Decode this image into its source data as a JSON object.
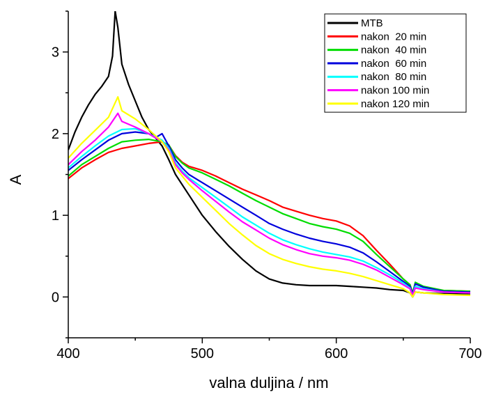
{
  "chart_data": {
    "type": "line",
    "title": "",
    "xlabel": "valna duljina / nm",
    "ylabel": "A",
    "xlim": [
      400,
      700
    ],
    "ylim": [
      -0.5,
      3.5
    ],
    "x_ticks": [
      400,
      500,
      600,
      700
    ],
    "y_ticks": [
      0,
      1,
      2,
      3
    ],
    "grid": false,
    "legend_position": "top-right",
    "series": [
      {
        "name": "MTB",
        "color": "#000000",
        "points": [
          [
            400,
            1.8
          ],
          [
            405,
            2.02
          ],
          [
            410,
            2.2
          ],
          [
            415,
            2.35
          ],
          [
            420,
            2.48
          ],
          [
            425,
            2.58
          ],
          [
            430,
            2.7
          ],
          [
            433,
            2.95
          ],
          [
            435,
            3.5
          ],
          [
            437,
            3.3
          ],
          [
            440,
            2.85
          ],
          [
            445,
            2.6
          ],
          [
            450,
            2.4
          ],
          [
            455,
            2.2
          ],
          [
            460,
            2.05
          ],
          [
            465,
            1.95
          ],
          [
            470,
            1.85
          ],
          [
            475,
            1.68
          ],
          [
            480,
            1.5
          ],
          [
            490,
            1.25
          ],
          [
            500,
            1.0
          ],
          [
            510,
            0.8
          ],
          [
            520,
            0.62
          ],
          [
            530,
            0.46
          ],
          [
            540,
            0.32
          ],
          [
            550,
            0.22
          ],
          [
            560,
            0.17
          ],
          [
            570,
            0.15
          ],
          [
            580,
            0.14
          ],
          [
            590,
            0.14
          ],
          [
            600,
            0.14
          ],
          [
            610,
            0.13
          ],
          [
            620,
            0.12
          ],
          [
            630,
            0.11
          ],
          [
            640,
            0.09
          ],
          [
            650,
            0.08
          ],
          [
            655,
            0.05
          ],
          [
            657,
            0.0
          ],
          [
            659,
            0.06
          ],
          [
            665,
            0.05
          ],
          [
            680,
            0.04
          ],
          [
            700,
            0.04
          ]
        ]
      },
      {
        "name": "nakon  20 min",
        "color": "#ff0000",
        "points": [
          [
            400,
            1.45
          ],
          [
            410,
            1.58
          ],
          [
            420,
            1.68
          ],
          [
            430,
            1.77
          ],
          [
            440,
            1.82
          ],
          [
            450,
            1.85
          ],
          [
            460,
            1.88
          ],
          [
            470,
            1.9
          ],
          [
            475,
            1.86
          ],
          [
            480,
            1.73
          ],
          [
            485,
            1.65
          ],
          [
            490,
            1.6
          ],
          [
            500,
            1.55
          ],
          [
            510,
            1.48
          ],
          [
            520,
            1.4
          ],
          [
            530,
            1.32
          ],
          [
            540,
            1.25
          ],
          [
            550,
            1.18
          ],
          [
            560,
            1.1
          ],
          [
            570,
            1.05
          ],
          [
            580,
            1.0
          ],
          [
            590,
            0.96
          ],
          [
            600,
            0.93
          ],
          [
            610,
            0.87
          ],
          [
            620,
            0.75
          ],
          [
            630,
            0.57
          ],
          [
            640,
            0.4
          ],
          [
            650,
            0.22
          ],
          [
            655,
            0.15
          ],
          [
            657,
            0.05
          ],
          [
            659,
            0.17
          ],
          [
            665,
            0.12
          ],
          [
            680,
            0.08
          ],
          [
            700,
            0.07
          ]
        ]
      },
      {
        "name": "nakon  40 min",
        "color": "#00dd00",
        "points": [
          [
            400,
            1.48
          ],
          [
            410,
            1.62
          ],
          [
            420,
            1.72
          ],
          [
            430,
            1.82
          ],
          [
            440,
            1.9
          ],
          [
            450,
            1.92
          ],
          [
            460,
            1.93
          ],
          [
            470,
            1.9
          ],
          [
            475,
            1.86
          ],
          [
            480,
            1.72
          ],
          [
            485,
            1.64
          ],
          [
            490,
            1.58
          ],
          [
            500,
            1.52
          ],
          [
            510,
            1.44
          ],
          [
            520,
            1.36
          ],
          [
            530,
            1.27
          ],
          [
            540,
            1.18
          ],
          [
            550,
            1.1
          ],
          [
            560,
            1.02
          ],
          [
            570,
            0.96
          ],
          [
            580,
            0.9
          ],
          [
            590,
            0.86
          ],
          [
            600,
            0.83
          ],
          [
            610,
            0.78
          ],
          [
            620,
            0.68
          ],
          [
            630,
            0.52
          ],
          [
            640,
            0.37
          ],
          [
            650,
            0.22
          ],
          [
            655,
            0.15
          ],
          [
            657,
            0.04
          ],
          [
            659,
            0.18
          ],
          [
            665,
            0.13
          ],
          [
            680,
            0.08
          ],
          [
            700,
            0.07
          ]
        ]
      },
      {
        "name": "nakon  60 min",
        "color": "#0000dd",
        "points": [
          [
            400,
            1.55
          ],
          [
            410,
            1.68
          ],
          [
            420,
            1.8
          ],
          [
            430,
            1.92
          ],
          [
            440,
            2.0
          ],
          [
            450,
            2.02
          ],
          [
            460,
            2.0
          ],
          [
            465,
            1.95
          ],
          [
            470,
            2.0
          ],
          [
            475,
            1.85
          ],
          [
            480,
            1.68
          ],
          [
            485,
            1.58
          ],
          [
            490,
            1.5
          ],
          [
            500,
            1.4
          ],
          [
            510,
            1.3
          ],
          [
            520,
            1.2
          ],
          [
            530,
            1.1
          ],
          [
            540,
            1.0
          ],
          [
            550,
            0.9
          ],
          [
            560,
            0.83
          ],
          [
            570,
            0.77
          ],
          [
            580,
            0.72
          ],
          [
            590,
            0.68
          ],
          [
            600,
            0.65
          ],
          [
            610,
            0.61
          ],
          [
            620,
            0.54
          ],
          [
            630,
            0.43
          ],
          [
            640,
            0.31
          ],
          [
            650,
            0.19
          ],
          [
            655,
            0.13
          ],
          [
            657,
            0.03
          ],
          [
            659,
            0.16
          ],
          [
            665,
            0.12
          ],
          [
            680,
            0.07
          ],
          [
            700,
            0.06
          ]
        ]
      },
      {
        "name": "nakon  80 min",
        "color": "#00ffff",
        "points": [
          [
            400,
            1.58
          ],
          [
            410,
            1.72
          ],
          [
            420,
            1.85
          ],
          [
            430,
            1.97
          ],
          [
            440,
            2.05
          ],
          [
            450,
            2.06
          ],
          [
            460,
            2.0
          ],
          [
            470,
            1.92
          ],
          [
            475,
            1.82
          ],
          [
            480,
            1.64
          ],
          [
            485,
            1.54
          ],
          [
            490,
            1.46
          ],
          [
            500,
            1.34
          ],
          [
            510,
            1.22
          ],
          [
            520,
            1.1
          ],
          [
            530,
            0.98
          ],
          [
            540,
            0.88
          ],
          [
            550,
            0.78
          ],
          [
            560,
            0.7
          ],
          [
            570,
            0.64
          ],
          [
            580,
            0.59
          ],
          [
            590,
            0.55
          ],
          [
            600,
            0.52
          ],
          [
            610,
            0.49
          ],
          [
            620,
            0.44
          ],
          [
            630,
            0.36
          ],
          [
            640,
            0.27
          ],
          [
            650,
            0.17
          ],
          [
            655,
            0.11
          ],
          [
            657,
            0.02
          ],
          [
            659,
            0.13
          ],
          [
            665,
            0.1
          ],
          [
            680,
            0.06
          ],
          [
            700,
            0.05
          ]
        ]
      },
      {
        "name": "nakon 100 min",
        "color": "#ff00ff",
        "points": [
          [
            400,
            1.62
          ],
          [
            410,
            1.78
          ],
          [
            420,
            1.92
          ],
          [
            430,
            2.08
          ],
          [
            437,
            2.25
          ],
          [
            440,
            2.15
          ],
          [
            450,
            2.08
          ],
          [
            460,
            2.0
          ],
          [
            470,
            1.9
          ],
          [
            475,
            1.8
          ],
          [
            480,
            1.62
          ],
          [
            485,
            1.52
          ],
          [
            490,
            1.44
          ],
          [
            500,
            1.3
          ],
          [
            510,
            1.17
          ],
          [
            520,
            1.04
          ],
          [
            530,
            0.92
          ],
          [
            540,
            0.82
          ],
          [
            550,
            0.72
          ],
          [
            560,
            0.64
          ],
          [
            570,
            0.58
          ],
          [
            580,
            0.53
          ],
          [
            590,
            0.5
          ],
          [
            600,
            0.48
          ],
          [
            610,
            0.45
          ],
          [
            620,
            0.4
          ],
          [
            630,
            0.33
          ],
          [
            640,
            0.24
          ],
          [
            650,
            0.15
          ],
          [
            655,
            0.1
          ],
          [
            657,
            0.02
          ],
          [
            659,
            0.11
          ],
          [
            665,
            0.09
          ],
          [
            680,
            0.06
          ],
          [
            700,
            0.05
          ]
        ]
      },
      {
        "name": "nakon 120 min",
        "color": "#ffff00",
        "points": [
          [
            400,
            1.7
          ],
          [
            410,
            1.88
          ],
          [
            420,
            2.04
          ],
          [
            430,
            2.2
          ],
          [
            437,
            2.45
          ],
          [
            440,
            2.28
          ],
          [
            450,
            2.18
          ],
          [
            460,
            2.05
          ],
          [
            470,
            1.9
          ],
          [
            475,
            1.78
          ],
          [
            480,
            1.58
          ],
          [
            485,
            1.48
          ],
          [
            490,
            1.38
          ],
          [
            500,
            1.22
          ],
          [
            510,
            1.06
          ],
          [
            520,
            0.9
          ],
          [
            530,
            0.76
          ],
          [
            540,
            0.63
          ],
          [
            550,
            0.53
          ],
          [
            560,
            0.46
          ],
          [
            570,
            0.41
          ],
          [
            580,
            0.37
          ],
          [
            590,
            0.34
          ],
          [
            600,
            0.32
          ],
          [
            610,
            0.29
          ],
          [
            620,
            0.25
          ],
          [
            630,
            0.2
          ],
          [
            640,
            0.15
          ],
          [
            650,
            0.1
          ],
          [
            655,
            0.05
          ],
          [
            657,
            0.0
          ],
          [
            659,
            0.06
          ],
          [
            665,
            0.05
          ],
          [
            680,
            0.03
          ],
          [
            700,
            0.02
          ]
        ]
      }
    ]
  }
}
